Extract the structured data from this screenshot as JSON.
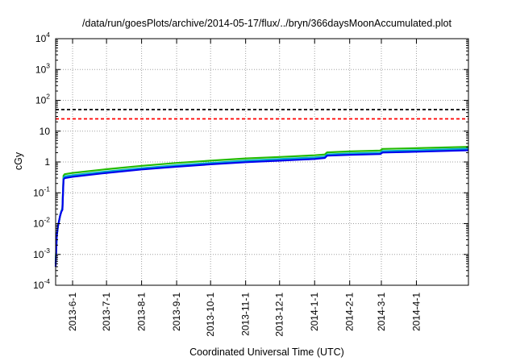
{
  "chart_data": {
    "type": "line",
    "title": "/data/run/goesPlots/archive/2014-05-17/flux/../bryn/366daysMoonAccumulated.plot",
    "xlabel": "Coordinated Universal Time (UTC)",
    "ylabel": "cGy",
    "y_scale": "log",
    "ylim": [
      0.0001,
      10000
    ],
    "xlim": [
      "2013-05-17",
      "2014-05-17"
    ],
    "y_ticks": [
      {
        "base": "10",
        "exp": "4",
        "value": 10000
      },
      {
        "base": "10",
        "exp": "3",
        "value": 1000
      },
      {
        "base": "10",
        "exp": "2",
        "value": 100
      },
      {
        "base": "10",
        "exp": "",
        "value": 10
      },
      {
        "base": "1",
        "exp": "",
        "value": 1
      },
      {
        "base": "10",
        "exp": "-1",
        "value": 0.1
      },
      {
        "base": "10",
        "exp": "-2",
        "value": 0.01
      },
      {
        "base": "10",
        "exp": "-3",
        "value": 0.001
      },
      {
        "base": "10",
        "exp": "-4",
        "value": 0.0001
      }
    ],
    "x_ticks": [
      {
        "label": "2013-6-1",
        "date": "2013-06-01"
      },
      {
        "label": "2013-7-1",
        "date": "2013-07-01"
      },
      {
        "label": "2013-8-1",
        "date": "2013-08-01"
      },
      {
        "label": "2013-9-1",
        "date": "2013-09-01"
      },
      {
        "label": "2013-10-1",
        "date": "2013-10-01"
      },
      {
        "label": "2013-11-1",
        "date": "2013-11-01"
      },
      {
        "label": "2013-12-1",
        "date": "2013-12-01"
      },
      {
        "label": "2014-1-1",
        "date": "2014-01-01"
      },
      {
        "label": "2014-2-1",
        "date": "2014-02-01"
      },
      {
        "label": "2014-3-1",
        "date": "2014-03-01"
      },
      {
        "label": "2014-4-1",
        "date": "2014-04-01"
      }
    ],
    "grid": true,
    "hlines": [
      {
        "value": 50,
        "color": "#000000",
        "style": "dashed"
      },
      {
        "value": 25,
        "color": "#ff0000",
        "style": "dashed"
      }
    ],
    "series": [
      {
        "color": "#22bb00",
        "points": [
          [
            "2013-05-17",
            0.0005
          ],
          [
            "2013-05-18",
            0.004
          ],
          [
            "2013-05-19",
            0.008
          ],
          [
            "2013-05-20",
            0.012
          ],
          [
            "2013-05-21",
            0.018
          ],
          [
            "2013-05-22",
            0.025
          ],
          [
            "2013-05-23",
            0.032
          ],
          [
            "2013-05-24",
            0.36
          ],
          [
            "2013-05-25",
            0.4
          ],
          [
            "2013-06-01",
            0.44
          ],
          [
            "2013-07-01",
            0.58
          ],
          [
            "2013-08-01",
            0.75
          ],
          [
            "2013-09-01",
            0.93
          ],
          [
            "2013-10-01",
            1.1
          ],
          [
            "2013-11-01",
            1.3
          ],
          [
            "2013-12-01",
            1.45
          ],
          [
            "2014-01-01",
            1.65
          ],
          [
            "2014-01-10",
            1.75
          ],
          [
            "2014-01-12",
            2.05
          ],
          [
            "2014-02-01",
            2.2
          ],
          [
            "2014-02-28",
            2.35
          ],
          [
            "2014-03-02",
            2.65
          ],
          [
            "2014-04-01",
            2.8
          ],
          [
            "2014-05-17",
            3.1
          ]
        ]
      },
      {
        "color": "#00aacc",
        "points": [
          [
            "2013-05-17",
            0.0005
          ],
          [
            "2013-05-18",
            0.004
          ],
          [
            "2013-05-19",
            0.008
          ],
          [
            "2013-05-20",
            0.012
          ],
          [
            "2013-05-21",
            0.018
          ],
          [
            "2013-05-22",
            0.025
          ],
          [
            "2013-05-23",
            0.03
          ],
          [
            "2013-05-24",
            0.3
          ],
          [
            "2013-05-25",
            0.34
          ],
          [
            "2013-06-01",
            0.37
          ],
          [
            "2013-07-01",
            0.49
          ],
          [
            "2013-08-01",
            0.63
          ],
          [
            "2013-09-01",
            0.78
          ],
          [
            "2013-10-01",
            0.93
          ],
          [
            "2013-11-01",
            1.1
          ],
          [
            "2013-12-01",
            1.25
          ],
          [
            "2014-01-01",
            1.4
          ],
          [
            "2014-01-10",
            1.5
          ],
          [
            "2014-01-12",
            1.75
          ],
          [
            "2014-02-01",
            1.88
          ],
          [
            "2014-02-28",
            2.0
          ],
          [
            "2014-03-02",
            2.25
          ],
          [
            "2014-04-01",
            2.4
          ],
          [
            "2014-05-17",
            2.7
          ]
        ]
      },
      {
        "color": "#0000ee",
        "points": [
          [
            "2013-05-17",
            0.0004
          ],
          [
            "2013-05-18",
            0.004
          ],
          [
            "2013-05-19",
            0.008
          ],
          [
            "2013-05-20",
            0.012
          ],
          [
            "2013-05-21",
            0.018
          ],
          [
            "2013-05-22",
            0.024
          ],
          [
            "2013-05-23",
            0.028
          ],
          [
            "2013-05-24",
            0.27
          ],
          [
            "2013-05-25",
            0.3
          ],
          [
            "2013-06-01",
            0.33
          ],
          [
            "2013-07-01",
            0.44
          ],
          [
            "2013-08-01",
            0.57
          ],
          [
            "2013-09-01",
            0.7
          ],
          [
            "2013-10-01",
            0.84
          ],
          [
            "2013-11-01",
            0.98
          ],
          [
            "2013-12-01",
            1.1
          ],
          [
            "2014-01-01",
            1.25
          ],
          [
            "2014-01-10",
            1.35
          ],
          [
            "2014-01-12",
            1.6
          ],
          [
            "2014-02-01",
            1.7
          ],
          [
            "2014-02-28",
            1.8
          ],
          [
            "2014-03-02",
            2.02
          ],
          [
            "2014-04-01",
            2.15
          ],
          [
            "2014-05-17",
            2.4
          ]
        ]
      }
    ]
  }
}
